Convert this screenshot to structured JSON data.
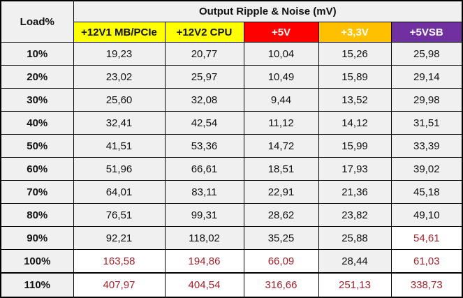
{
  "table": {
    "load_header": "Load%",
    "title": "Output Ripple & Noise (mV)",
    "rails": [
      {
        "label": "+12V1 MB/PCIe",
        "bg": "#ffff00",
        "fg": "#111111"
      },
      {
        "label": "+12V2 CPU",
        "bg": "#ffff00",
        "fg": "#111111"
      },
      {
        "label": "+5V",
        "bg": "#ff0000",
        "fg": "#ffffff"
      },
      {
        "label": "+3,3V",
        "bg": "#ffc000",
        "fg": "#ffffff"
      },
      {
        "label": "+5VSB",
        "bg": "#7030a0",
        "fg": "#ffffff"
      }
    ],
    "warn_color": "#a0222e",
    "rows": [
      {
        "load": "10%",
        "values": [
          "19,23",
          "20,77",
          "10,04",
          "15,26",
          "25,98"
        ],
        "warn": [
          false,
          false,
          false,
          false,
          false
        ],
        "bg": [
          "grey",
          "grey",
          "grey",
          "grey",
          "grey"
        ]
      },
      {
        "load": "20%",
        "values": [
          "23,02",
          "25,97",
          "10,49",
          "15,89",
          "29,14"
        ],
        "warn": [
          false,
          false,
          false,
          false,
          false
        ],
        "bg": [
          "grey",
          "grey",
          "grey",
          "grey",
          "grey"
        ]
      },
      {
        "load": "30%",
        "values": [
          "25,60",
          "32,08",
          "9,44",
          "13,52",
          "29,98"
        ],
        "warn": [
          false,
          false,
          false,
          false,
          false
        ],
        "bg": [
          "grey",
          "grey",
          "grey",
          "grey",
          "grey"
        ]
      },
      {
        "load": "40%",
        "values": [
          "32,41",
          "42,54",
          "11,12",
          "14,12",
          "31,51"
        ],
        "warn": [
          false,
          false,
          false,
          false,
          false
        ],
        "bg": [
          "grey",
          "grey",
          "grey",
          "grey",
          "grey"
        ]
      },
      {
        "load": "50%",
        "values": [
          "41,51",
          "53,36",
          "14,72",
          "15,99",
          "33,39"
        ],
        "warn": [
          false,
          false,
          false,
          false,
          false
        ],
        "bg": [
          "grey",
          "grey",
          "grey",
          "grey",
          "grey"
        ]
      },
      {
        "load": "60%",
        "values": [
          "51,96",
          "66,61",
          "18,51",
          "17,93",
          "39,02"
        ],
        "warn": [
          false,
          false,
          false,
          false,
          false
        ],
        "bg": [
          "grey",
          "grey",
          "grey",
          "grey",
          "grey"
        ]
      },
      {
        "load": "70%",
        "values": [
          "64,01",
          "83,11",
          "22,91",
          "21,36",
          "45,18"
        ],
        "warn": [
          false,
          false,
          false,
          false,
          false
        ],
        "bg": [
          "grey",
          "grey",
          "grey",
          "grey",
          "grey"
        ]
      },
      {
        "load": "80%",
        "values": [
          "76,51",
          "99,31",
          "28,62",
          "23,82",
          "49,10"
        ],
        "warn": [
          false,
          false,
          false,
          false,
          false
        ],
        "bg": [
          "grey",
          "grey",
          "grey",
          "grey",
          "grey"
        ]
      },
      {
        "load": "90%",
        "values": [
          "92,21",
          "118,02",
          "35,25",
          "25,88",
          "54,61"
        ],
        "warn": [
          false,
          false,
          false,
          false,
          true
        ],
        "bg": [
          "grey",
          "grey",
          "grey",
          "grey",
          "white"
        ]
      },
      {
        "load": "100%",
        "values": [
          "163,58",
          "194,86",
          "66,09",
          "28,44",
          "61,03"
        ],
        "warn": [
          true,
          true,
          true,
          false,
          true
        ],
        "bg": [
          "white",
          "white",
          "white",
          "grey",
          "white"
        ]
      },
      {
        "load": "110%",
        "values": [
          "407,97",
          "404,54",
          "316,66",
          "251,13",
          "338,73"
        ],
        "warn": [
          true,
          true,
          true,
          true,
          true
        ],
        "bg": [
          "white",
          "white",
          "white",
          "white",
          "white"
        ]
      }
    ]
  }
}
